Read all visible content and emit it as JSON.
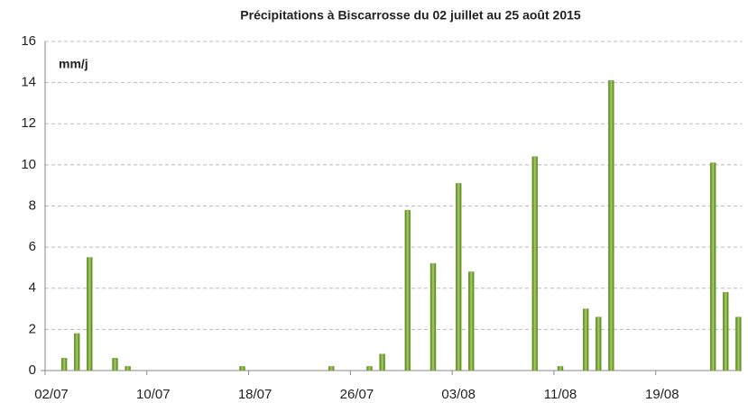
{
  "chart_data": {
    "type": "bar",
    "title": "Précipitations à Biscarrosse du 02 juillet au 25 août 2015",
    "y_label": "mm/j",
    "categories": [
      "02/07",
      null,
      null,
      null,
      null,
      null,
      null,
      null,
      "10/07",
      null,
      null,
      null,
      null,
      null,
      null,
      null,
      "18/07",
      null,
      null,
      null,
      null,
      null,
      null,
      null,
      "26/07",
      null,
      null,
      null,
      null,
      null,
      null,
      null,
      "03/08",
      null,
      null,
      null,
      null,
      null,
      null,
      null,
      "11/08",
      null,
      null,
      null,
      null,
      null,
      null,
      null,
      "19/08",
      null,
      null,
      null,
      null,
      null,
      null
    ],
    "values": [
      0,
      0.6,
      1.8,
      5.5,
      0,
      0.6,
      0.2,
      0,
      0,
      0,
      0,
      0,
      0,
      0,
      0,
      0.2,
      0,
      0,
      0,
      0,
      0,
      0,
      0.2,
      0,
      0,
      0.2,
      0.8,
      0,
      7.8,
      0,
      5.2,
      0,
      9.1,
      4.8,
      0,
      0,
      0,
      0,
      10.4,
      0,
      0.2,
      0,
      3.0,
      2.6,
      14.1,
      0,
      0,
      0,
      0,
      0,
      0,
      0,
      10.1,
      3.8,
      2.6
    ],
    "color": "#7aa33a",
    "ylim": [
      0,
      16
    ],
    "yticks": [
      0,
      2,
      4,
      6,
      8,
      10,
      12,
      14,
      16
    ],
    "grid": true
  }
}
